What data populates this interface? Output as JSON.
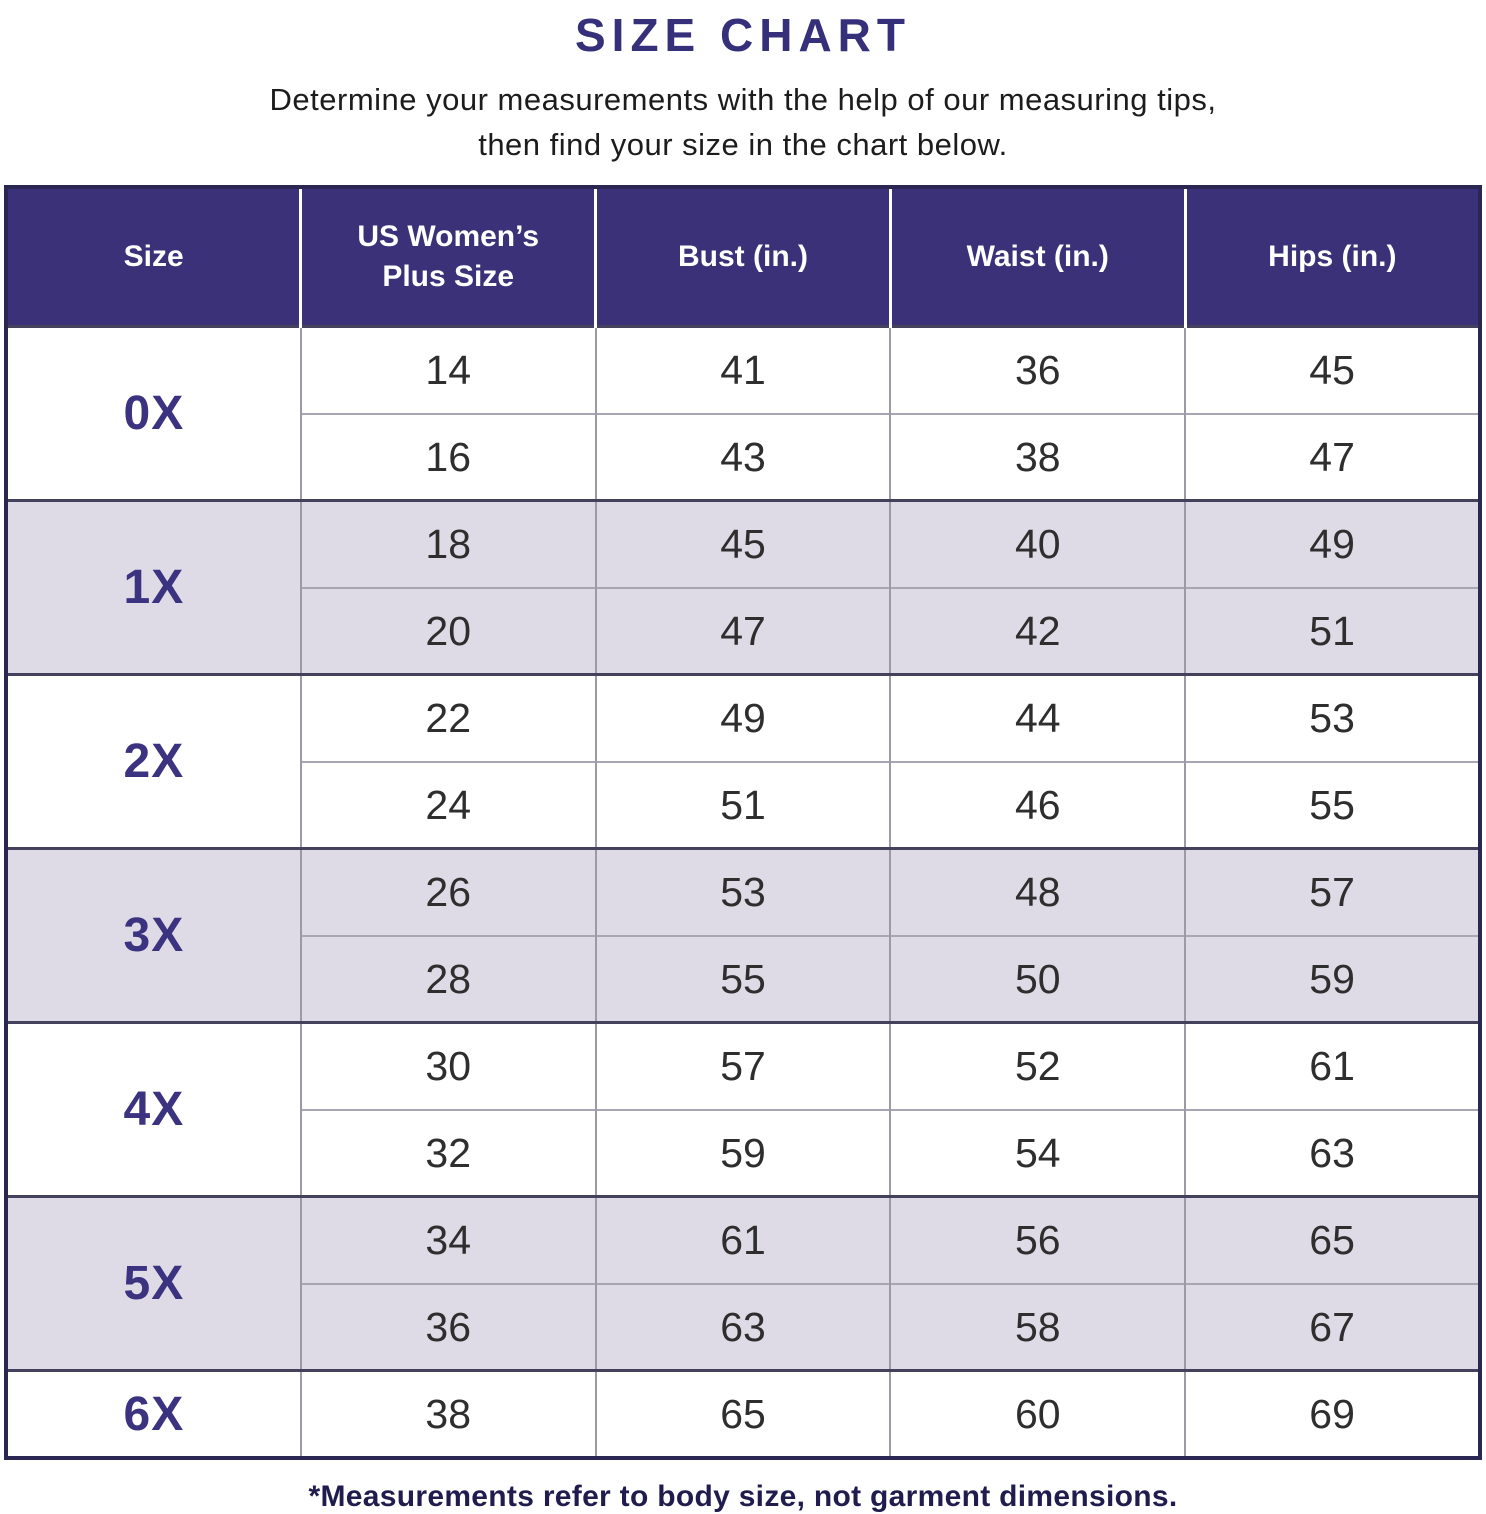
{
  "page": {
    "title": "SIZE CHART",
    "subtitle": "Determine your measurements with the help of our measuring tips,\nthen find your size in the chart below.",
    "footnote": "*Measurements refer to body size, not garment dimensions."
  },
  "colors": {
    "header_bg": "#3a3178",
    "title_text": "#362f79",
    "size_label_text": "#3c3380",
    "shaded_row_bg": "#dfdbe6",
    "white_row_bg": "#ffffff",
    "value_text": "#2e2e2e",
    "footnote_text": "#201d4e",
    "outer_border": "#2a2753",
    "group_divider": "#43415c",
    "cell_divider": "#9d9aa8"
  },
  "table": {
    "columns": [
      "Size",
      "US Women’s\nPlus Size",
      "Bust (in.)",
      "Waist (in.)",
      "Hips (in.)"
    ],
    "groups": [
      {
        "size": "0X",
        "shaded": false,
        "rows": [
          [
            "14",
            "41",
            "36",
            "45"
          ],
          [
            "16",
            "43",
            "38",
            "47"
          ]
        ]
      },
      {
        "size": "1X",
        "shaded": true,
        "rows": [
          [
            "18",
            "45",
            "40",
            "49"
          ],
          [
            "20",
            "47",
            "42",
            "51"
          ]
        ]
      },
      {
        "size": "2X",
        "shaded": false,
        "rows": [
          [
            "22",
            "49",
            "44",
            "53"
          ],
          [
            "24",
            "51",
            "46",
            "55"
          ]
        ]
      },
      {
        "size": "3X",
        "shaded": true,
        "rows": [
          [
            "26",
            "53",
            "48",
            "57"
          ],
          [
            "28",
            "55",
            "50",
            "59"
          ]
        ]
      },
      {
        "size": "4X",
        "shaded": false,
        "rows": [
          [
            "30",
            "57",
            "52",
            "61"
          ],
          [
            "32",
            "59",
            "54",
            "63"
          ]
        ]
      },
      {
        "size": "5X",
        "shaded": true,
        "rows": [
          [
            "34",
            "61",
            "56",
            "65"
          ],
          [
            "36",
            "63",
            "58",
            "67"
          ]
        ]
      },
      {
        "size": "6X",
        "shaded": false,
        "rows": [
          [
            "38",
            "65",
            "60",
            "69"
          ]
        ]
      }
    ]
  },
  "chart_data": {
    "type": "table",
    "title": "SIZE CHART",
    "columns": [
      "Size",
      "US Women’s Plus Size",
      "Bust (in.)",
      "Waist (in.)",
      "Hips (in.)"
    ],
    "rows": [
      [
        "0X",
        "14",
        "41",
        "36",
        "45"
      ],
      [
        "0X",
        "16",
        "43",
        "38",
        "47"
      ],
      [
        "1X",
        "18",
        "45",
        "40",
        "49"
      ],
      [
        "1X",
        "20",
        "47",
        "42",
        "51"
      ],
      [
        "2X",
        "22",
        "49",
        "44",
        "53"
      ],
      [
        "2X",
        "24",
        "51",
        "46",
        "55"
      ],
      [
        "3X",
        "26",
        "53",
        "48",
        "57"
      ],
      [
        "3X",
        "28",
        "55",
        "50",
        "59"
      ],
      [
        "4X",
        "30",
        "57",
        "52",
        "61"
      ],
      [
        "4X",
        "32",
        "59",
        "54",
        "63"
      ],
      [
        "5X",
        "34",
        "61",
        "56",
        "65"
      ],
      [
        "5X",
        "36",
        "63",
        "58",
        "67"
      ],
      [
        "6X",
        "38",
        "65",
        "60",
        "69"
      ]
    ],
    "note": "*Measurements refer to body size, not garment dimensions."
  }
}
